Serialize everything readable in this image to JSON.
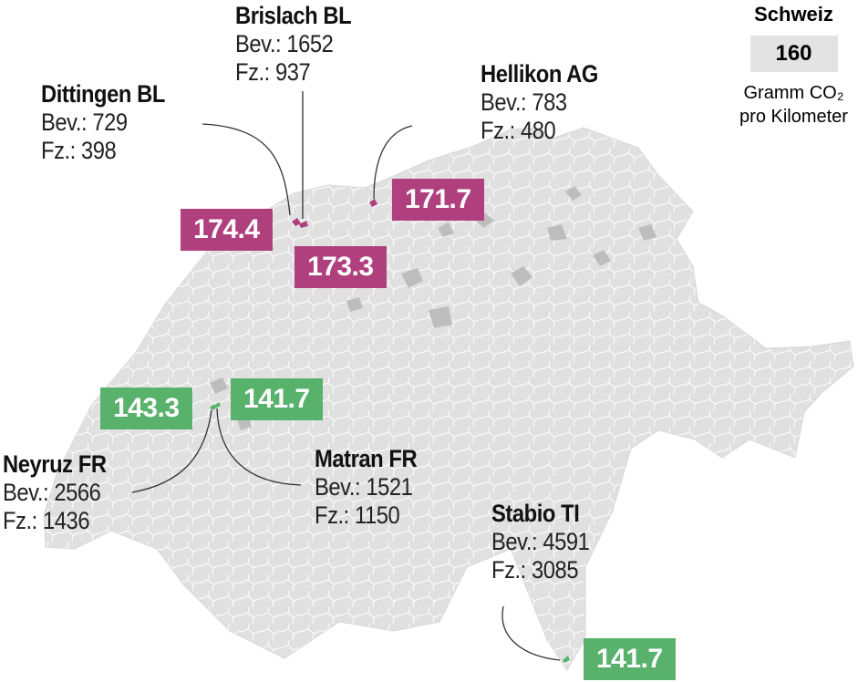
{
  "legend": {
    "title": "Schweiz",
    "value": "160",
    "unit_line1": "Gramm CO₂",
    "unit_line2": "pro Kilometer"
  },
  "colors": {
    "high": "#b03f7e",
    "low": "#58b26c",
    "map_base": "#e0e0e0",
    "map_dark": "#b9b9b9",
    "border": "#ffffff"
  },
  "places": [
    {
      "name": "Brislach BL",
      "bev": "Bev.: 1652",
      "fz": "Fz.: 937",
      "value": "173.3",
      "category": "high"
    },
    {
      "name": "Dittingen BL",
      "bev": "Bev.: 729",
      "fz": "Fz.: 398",
      "value": "174.4",
      "category": "high"
    },
    {
      "name": "Hellikon AG",
      "bev": "Bev.: 783",
      "fz": "Fz.: 480",
      "value": "171.7",
      "category": "high"
    },
    {
      "name": "Neyruz FR",
      "bev": "Bev.: 2566",
      "fz": "Fz.: 1436",
      "value": "143.3",
      "category": "low"
    },
    {
      "name": "Matran FR",
      "bev": "Bev.: 1521",
      "fz": "Fz.: 1150",
      "value": "141.7",
      "category": "low"
    },
    {
      "name": "Stabio TI",
      "bev": "Bev.: 4591",
      "fz": "Fz.: 3085",
      "value": "141.7",
      "category": "low"
    }
  ]
}
